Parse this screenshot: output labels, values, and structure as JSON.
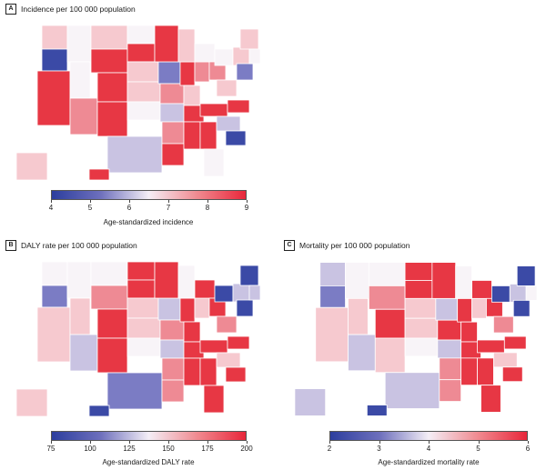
{
  "panels": [
    {
      "letter": "A",
      "title": "Incidence per 100 000 population",
      "legend": {
        "title": "Age-standardized incidence",
        "ticks": [
          "4",
          "5",
          "6",
          "7",
          "8",
          "9"
        ],
        "min": 4,
        "max": 9
      }
    },
    {
      "letter": "B",
      "title": "DALY rate per 100 000 population",
      "legend": {
        "title": "Age-standardized DALY rate",
        "ticks": [
          "75",
          "100",
          "125",
          "150",
          "175",
          "200"
        ],
        "min": 75,
        "max": 200
      }
    },
    {
      "letter": "C",
      "title": "Mortality per 100 000 population",
      "legend": {
        "title": "Age-standardized mortality rate",
        "ticks": [
          "2",
          "3",
          "4",
          "5",
          "6"
        ],
        "min": 2,
        "max": 6
      }
    }
  ],
  "color_scale": {
    "low": "#2c3e9e",
    "mid": "#f4eef6",
    "high": "#e8263a"
  }
}
